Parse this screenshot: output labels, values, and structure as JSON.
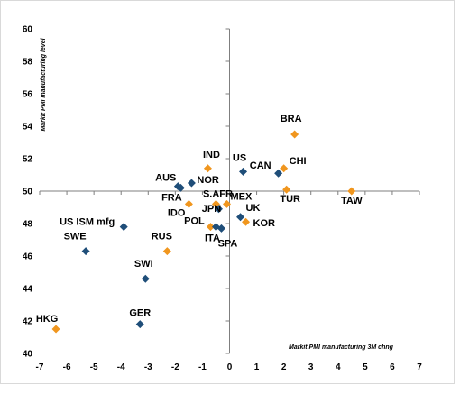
{
  "chart_data": {
    "type": "scatter",
    "title": "",
    "xlabel": "Markit PMI manufacturing 3M chng",
    "ylabel": "Markit PMI manufacturing level",
    "xlim": [
      -7,
      7
    ],
    "ylim": [
      40,
      60
    ],
    "xticks": [
      "-7",
      "-6",
      "-5",
      "-4",
      "-3",
      "-2",
      "-1",
      "0",
      "1",
      "2",
      "3",
      "4",
      "5",
      "6",
      "7"
    ],
    "yticks": [
      "40",
      "42",
      "44",
      "46",
      "48",
      "50",
      "52",
      "54",
      "56",
      "58",
      "60"
    ],
    "grid": false,
    "legend": "none",
    "colors": {
      "developed": "#1f4e79",
      "emerging": "#f0961e"
    },
    "points": [
      {
        "label": "BRA",
        "x": 2.4,
        "y": 53.5,
        "group": "emerging"
      },
      {
        "label": "CHI",
        "x": 2.0,
        "y": 51.4,
        "group": "emerging"
      },
      {
        "label": "US",
        "x": 0.5,
        "y": 51.2,
        "group": "developed"
      },
      {
        "label": "IND",
        "x": -0.8,
        "y": 51.4,
        "group": "emerging"
      },
      {
        "label": "CAN",
        "x": 1.8,
        "y": 51.1,
        "group": "developed"
      },
      {
        "label": "AUS",
        "x": -1.9,
        "y": 50.3,
        "group": "developed"
      },
      {
        "label": "NOR",
        "x": -1.4,
        "y": 50.5,
        "group": "developed"
      },
      {
        "label": "TUR",
        "x": 2.1,
        "y": 50.1,
        "group": "emerging"
      },
      {
        "label": "TAW",
        "x": 4.5,
        "y": 50.0,
        "group": "emerging"
      },
      {
        "label": "FRA",
        "x": -1.8,
        "y": 50.2,
        "group": "developed"
      },
      {
        "label": "IDO",
        "x": -1.5,
        "y": 49.2,
        "group": "emerging"
      },
      {
        "label": "S.AFR",
        "x": -0.5,
        "y": 49.2,
        "group": "emerging"
      },
      {
        "label": "MEX",
        "x": -0.1,
        "y": 49.2,
        "group": "emerging"
      },
      {
        "label": "UK",
        "x": 0.4,
        "y": 48.4,
        "group": "developed"
      },
      {
        "label": "JPN",
        "x": -0.4,
        "y": 48.9,
        "group": "developed"
      },
      {
        "label": "POL",
        "x": -0.7,
        "y": 47.8,
        "group": "emerging"
      },
      {
        "label": "KOR",
        "x": 0.6,
        "y": 48.1,
        "group": "emerging"
      },
      {
        "label": "ITA",
        "x": -0.5,
        "y": 47.8,
        "group": "developed"
      },
      {
        "label": "SPA",
        "x": -0.3,
        "y": 47.7,
        "group": "developed"
      },
      {
        "label": "US ISM mfg",
        "x": -3.9,
        "y": 47.8,
        "group": "developed"
      },
      {
        "label": "SWE",
        "x": -5.3,
        "y": 46.3,
        "group": "developed"
      },
      {
        "label": "RUS",
        "x": -2.3,
        "y": 46.3,
        "group": "emerging"
      },
      {
        "label": "SWI",
        "x": -3.1,
        "y": 44.6,
        "group": "developed"
      },
      {
        "label": "GER",
        "x": -3.3,
        "y": 41.8,
        "group": "developed"
      },
      {
        "label": "HKG",
        "x": -6.4,
        "y": 41.5,
        "group": "emerging"
      }
    ]
  }
}
